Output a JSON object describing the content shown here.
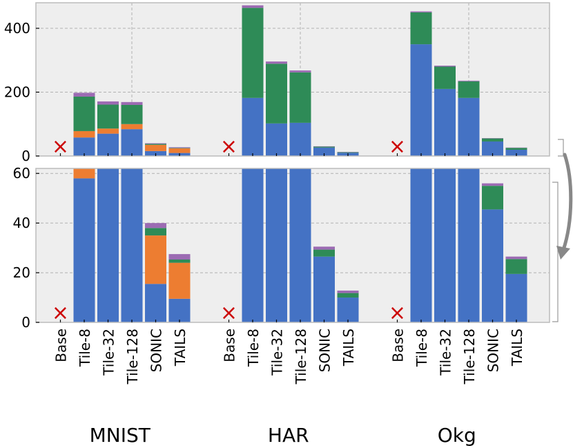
{
  "chart_data": {
    "type": "bar",
    "layout": "stacked bars, broken y-axis (top panel full range, bottom panel zoomed 0-62)",
    "groups": [
      "MNIST",
      "HAR",
      "Okg"
    ],
    "categories": [
      "Base",
      "Tile-8",
      "Tile-32",
      "Tile-128",
      "SONIC",
      "TAILS"
    ],
    "base_marker": "×",
    "colors": {
      "blue": "#4472C4",
      "orange": "#ED7D31",
      "green": "#2E8B57",
      "purple": "#9C6BB3",
      "base_marker": "#CC0000",
      "panel_bg": "#EEEEEE"
    },
    "series_order": [
      "blue",
      "orange",
      "green",
      "purple"
    ],
    "top_panel": {
      "ylim": [
        0,
        480
      ],
      "yticks": [
        0,
        200,
        400
      ]
    },
    "bottom_panel": {
      "ylim": [
        0,
        62
      ],
      "yticks": [
        0,
        20,
        40,
        60
      ]
    },
    "data": {
      "MNIST": {
        "Base": null,
        "Tile-8": [
          58,
          20,
          108,
          12
        ],
        "Tile-32": [
          70,
          16,
          75,
          10
        ],
        "Tile-128": [
          84,
          16,
          60,
          9
        ],
        "SONIC": [
          15.5,
          19.5,
          3,
          2
        ],
        "TAILS": [
          9.5,
          14.5,
          1.3,
          2.2
        ]
      },
      "HAR": {
        "Base": null,
        "Tile-8": [
          182,
          0,
          282,
          8
        ],
        "Tile-32": [
          102,
          0,
          187,
          7
        ],
        "Tile-128": [
          104,
          0,
          158,
          6
        ],
        "SONIC": [
          26.5,
          0,
          2.8,
          1.2
        ],
        "TAILS": [
          10,
          0,
          1.8,
          1
        ]
      },
      "Okg": {
        "Base": null,
        "Tile-8": [
          350,
          0,
          100,
          3
        ],
        "Tile-32": [
          210,
          0,
          70,
          3
        ],
        "Tile-128": [
          182,
          0,
          52,
          2
        ],
        "SONIC": [
          45.5,
          0,
          9.5,
          1
        ],
        "TAILS": [
          19.5,
          0,
          6,
          1
        ]
      }
    }
  }
}
